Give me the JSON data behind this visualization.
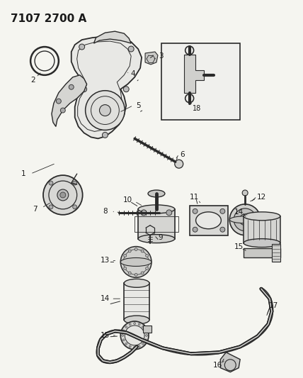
{
  "title": "7107 2700 A",
  "bg_color": "#f5f5f0",
  "lc": "#2a2a2a",
  "tc": "#1a1a1a",
  "title_fontsize": 11,
  "label_fontsize": 7.5,
  "lw_main": 1.0,
  "lw_thin": 0.5,
  "lw_thick": 1.8,
  "figsize": [
    4.28,
    5.33
  ],
  "dpi": 100
}
